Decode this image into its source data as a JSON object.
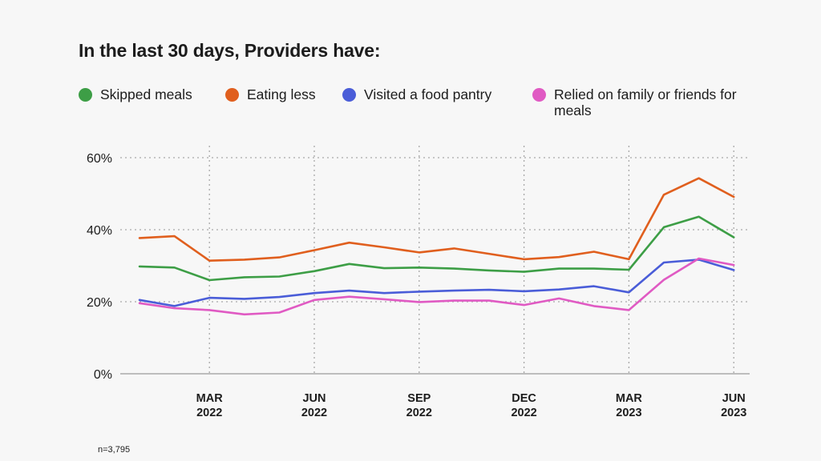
{
  "chart_data": {
    "type": "line",
    "title": "In the last 30 days, Providers have:",
    "xlabel": "",
    "ylabel": "",
    "ylim": [
      0,
      60
    ],
    "y_ticks": [
      "0%",
      "20%",
      "40%",
      "60%"
    ],
    "y_tick_values": [
      0,
      20,
      40,
      60
    ],
    "x": [
      "2022-01",
      "2022-02",
      "2022-03",
      "2022-04",
      "2022-05",
      "2022-06",
      "2022-07",
      "2022-08",
      "2022-09",
      "2022-10",
      "2022-11",
      "2022-12",
      "2023-01",
      "2023-02",
      "2023-03",
      "2023-04",
      "2023-05",
      "2023-06"
    ],
    "x_ticks": [
      {
        "x": "2022-03",
        "line1": "MAR",
        "line2": "2022"
      },
      {
        "x": "2022-06",
        "line1": "JUN",
        "line2": "2022"
      },
      {
        "x": "2022-09",
        "line1": "SEP",
        "line2": "2022"
      },
      {
        "x": "2022-12",
        "line1": "DEC",
        "line2": "2022"
      },
      {
        "x": "2023-03",
        "line1": "MAR",
        "line2": "2023"
      },
      {
        "x": "2023-06",
        "line1": "JUN",
        "line2": "2023"
      }
    ],
    "grid": true,
    "legend_position": "top",
    "series": [
      {
        "name": "Skipped meals",
        "color": "#3d9e46",
        "values": [
          29.8,
          29.5,
          26.0,
          26.8,
          27.0,
          28.5,
          30.5,
          29.3,
          29.5,
          29.2,
          28.7,
          28.3,
          29.2,
          29.2,
          28.9,
          40.7,
          43.6,
          37.9
        ]
      },
      {
        "name": "Eating less",
        "color": "#e05f1e",
        "values": [
          37.7,
          38.2,
          31.4,
          31.7,
          32.3,
          34.3,
          36.4,
          35.1,
          33.7,
          34.8,
          33.3,
          31.8,
          32.4,
          33.9,
          31.8,
          49.7,
          54.3,
          49.1
        ]
      },
      {
        "name": "Visited a food pantry",
        "color": "#4a5dd8",
        "values": [
          20.5,
          18.8,
          21.1,
          20.8,
          21.3,
          22.4,
          23.1,
          22.4,
          22.8,
          23.1,
          23.3,
          22.9,
          23.4,
          24.3,
          22.6,
          30.9,
          31.7,
          28.8
        ]
      },
      {
        "name": "Relied on family or friends for meals",
        "color": "#e05ac3",
        "values": [
          19.6,
          18.2,
          17.7,
          16.5,
          17.0,
          20.5,
          21.4,
          20.7,
          19.9,
          20.3,
          20.3,
          19.1,
          20.9,
          18.8,
          17.7,
          26.1,
          32.0,
          30.2
        ]
      }
    ]
  },
  "footnote": "n=3,795"
}
